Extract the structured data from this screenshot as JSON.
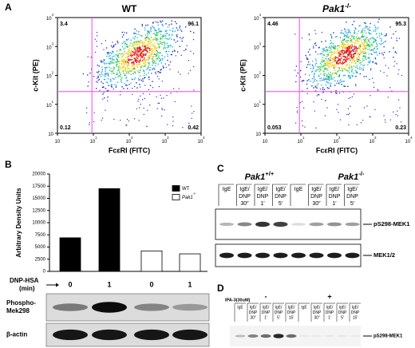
{
  "panel_a": {
    "label": "A",
    "y_label": "c-Kit (PE)",
    "x_label": "FcεRI (FITC)",
    "tick_base": "10",
    "tick_exponents": [
      0,
      1,
      2,
      3,
      4
    ],
    "plots": [
      {
        "title": "WT",
        "title_sup": "",
        "quadrants": {
          "upper_left": 3.4,
          "upper_right": 96.1,
          "lower_left": 0.12,
          "lower_right": 0.42
        }
      },
      {
        "title": "Pak1",
        "title_sup": "-/-",
        "quadrants": {
          "upper_left": 4.46,
          "upper_right": 95.3,
          "lower_left": 0.053,
          "lower_right": 0.23
        }
      }
    ]
  },
  "chart_data": {
    "type": "bar",
    "label": "B",
    "y_label": "Arbitrary Density Units",
    "x_label": "DNP-HSA",
    "x_unit": "(min)",
    "categories": [
      "0",
      "1",
      "0",
      "1"
    ],
    "ylim": [
      0,
      20000
    ],
    "yticks": [
      0,
      2500,
      5000,
      7500,
      10000,
      12500,
      15000,
      17500,
      20000
    ],
    "series": [
      {
        "name": "WT",
        "name_sup": "",
        "color": "#000000",
        "values": [
          6900,
          17000,
          null,
          null
        ]
      },
      {
        "name": "Pak1",
        "name_sup": "-/-",
        "color": "#ffffff",
        "values": [
          null,
          null,
          4200,
          3600
        ]
      }
    ],
    "blots": [
      {
        "label_lines": [
          "Phospho-",
          "Mek298"
        ]
      },
      {
        "label_lines": [
          "β-actin"
        ]
      }
    ]
  },
  "panel_c": {
    "label": "C",
    "groups": [
      {
        "title": "Pak1",
        "title_sup": "+/+"
      },
      {
        "title": "Pak1",
        "title_sup": "-/-"
      }
    ],
    "lanes": [
      [
        "IgE"
      ],
      [
        "IgE/",
        "DNP",
        "30″"
      ],
      [
        "IgE/",
        "DNP",
        "1′"
      ],
      [
        "IgE/",
        "DNP",
        "5′"
      ]
    ],
    "blots": [
      "pS298-MEK1",
      "MEK1/2"
    ]
  },
  "panel_d": {
    "label": "D",
    "treatment": "IPA-3(30uM)",
    "groups": [
      "-",
      "+"
    ],
    "lanes": [
      [
        "IgE"
      ],
      [
        "IgE/",
        "DNP",
        "30″"
      ],
      [
        "IgE/",
        "DNP",
        "1′"
      ],
      [
        "IgE/",
        "DNP",
        "5′"
      ],
      [
        "IgE/",
        "DNP",
        "15′"
      ]
    ],
    "blot": "pS298-MEK1"
  }
}
